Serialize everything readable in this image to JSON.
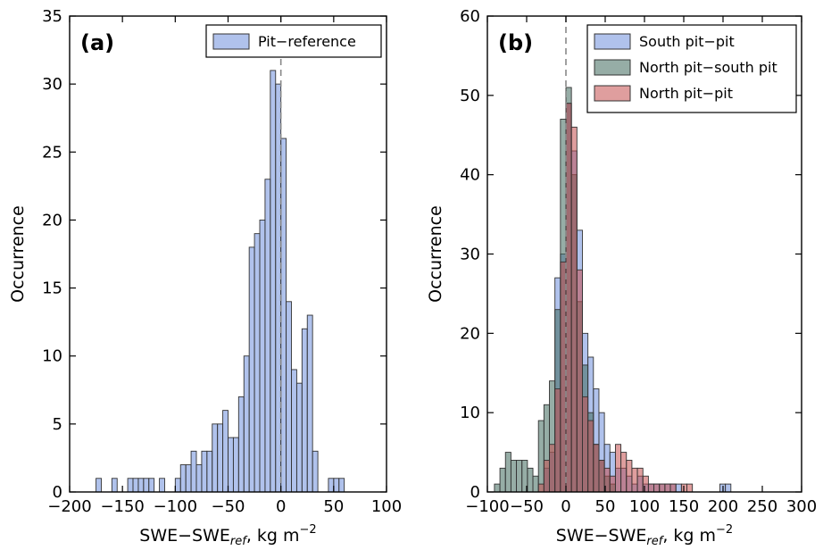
{
  "chart_data": [
    {
      "type": "bar",
      "panel_label": "(a)",
      "xlabel": "SWE−SWE",
      "xlabel_sub": "ref",
      "xlabel_unit": ", kg m",
      "xlabel_sup": "−2",
      "ylabel": "Occurrence",
      "xlim": [
        -200,
        100
      ],
      "ylim": [
        0,
        35
      ],
      "xticks": [
        -200,
        -150,
        -100,
        -50,
        0,
        50,
        100
      ],
      "xtick_labels": [
        "−200",
        "−150",
        "−100",
        "−50",
        "0",
        "50",
        "100"
      ],
      "yticks": [
        0,
        5,
        10,
        15,
        20,
        25,
        30,
        35
      ],
      "ytick_labels": [
        "0",
        "5",
        "10",
        "15",
        "20",
        "25",
        "30",
        "35"
      ],
      "bin_width": 5,
      "reference_line_x": 0,
      "legend_position": "top-right",
      "series": [
        {
          "name": "Pit−reference",
          "color": "#6f8fdc",
          "bins": [
            [
              -175,
              1
            ],
            [
              -160,
              1
            ],
            [
              -145,
              1
            ],
            [
              -140,
              1
            ],
            [
              -135,
              1
            ],
            [
              -130,
              1
            ],
            [
              -125,
              1
            ],
            [
              -115,
              1
            ],
            [
              -100,
              1
            ],
            [
              -95,
              2
            ],
            [
              -90,
              2
            ],
            [
              -85,
              3
            ],
            [
              -80,
              2
            ],
            [
              -75,
              3
            ],
            [
              -70,
              3
            ],
            [
              -65,
              5
            ],
            [
              -60,
              5
            ],
            [
              -55,
              6
            ],
            [
              -50,
              4
            ],
            [
              -45,
              4
            ],
            [
              -40,
              7
            ],
            [
              -35,
              10
            ],
            [
              -30,
              18
            ],
            [
              -25,
              19
            ],
            [
              -20,
              20
            ],
            [
              -15,
              23
            ],
            [
              -10,
              31
            ],
            [
              -5,
              30
            ],
            [
              0,
              26
            ],
            [
              5,
              14
            ],
            [
              10,
              9
            ],
            [
              15,
              8
            ],
            [
              20,
              12
            ],
            [
              25,
              13
            ],
            [
              30,
              3
            ],
            [
              45,
              1
            ],
            [
              50,
              1
            ],
            [
              55,
              1
            ]
          ]
        }
      ]
    },
    {
      "type": "bar",
      "panel_label": "(b)",
      "xlabel": "SWE−SWE",
      "xlabel_sub": "ref",
      "xlabel_unit": ", kg m",
      "xlabel_sup": "−2",
      "ylabel": "Occurrence",
      "xlim": [
        -100,
        300
      ],
      "ylim": [
        0,
        60
      ],
      "xticks": [
        -100,
        -50,
        0,
        50,
        100,
        150,
        200,
        250,
        300
      ],
      "xtick_labels": [
        "−100",
        "−50",
        "0",
        "50",
        "100",
        "150",
        "200",
        "250",
        "300"
      ],
      "yticks": [
        0,
        10,
        20,
        30,
        40,
        50,
        60
      ],
      "ytick_labels": [
        "0",
        "10",
        "20",
        "30",
        "40",
        "50",
        "60"
      ],
      "bin_width": 7,
      "reference_line_x": 0,
      "legend_position": "top-right",
      "series": [
        {
          "name": "South pit−pit",
          "color": "#6f8fdc",
          "bins": [
            [
              -28,
              3
            ],
            [
              -21,
              5
            ],
            [
              -14,
              27
            ],
            [
              -7,
              30
            ],
            [
              0,
              49
            ],
            [
              7,
              43
            ],
            [
              14,
              33
            ],
            [
              21,
              20
            ],
            [
              28,
              17
            ],
            [
              35,
              13
            ],
            [
              42,
              10
            ],
            [
              49,
              6
            ],
            [
              56,
              5
            ],
            [
              63,
              3
            ],
            [
              70,
              3
            ],
            [
              77,
              2
            ],
            [
              84,
              1
            ],
            [
              91,
              2
            ],
            [
              98,
              1
            ],
            [
              105,
              1
            ],
            [
              112,
              1
            ],
            [
              119,
              1
            ],
            [
              126,
              1
            ],
            [
              133,
              1
            ],
            [
              140,
              1
            ],
            [
              196,
              1
            ],
            [
              203,
              1
            ]
          ]
        },
        {
          "name": "North pit−south pit",
          "color": "#3f6a5c",
          "bins": [
            [
              -91,
              1
            ],
            [
              -84,
              3
            ],
            [
              -77,
              5
            ],
            [
              -70,
              4
            ],
            [
              -63,
              4
            ],
            [
              -56,
              4
            ],
            [
              -49,
              3
            ],
            [
              -42,
              2
            ],
            [
              -35,
              9
            ],
            [
              -28,
              11
            ],
            [
              -21,
              14
            ],
            [
              -14,
              23
            ],
            [
              -7,
              47
            ],
            [
              0,
              51
            ],
            [
              7,
              40
            ],
            [
              14,
              24
            ],
            [
              21,
              16
            ],
            [
              28,
              10
            ],
            [
              35,
              6
            ],
            [
              42,
              4
            ],
            [
              49,
              2
            ],
            [
              56,
              1
            ]
          ]
        },
        {
          "name": "North pit−pit",
          "color": "#c44e4e",
          "bins": [
            [
              -35,
              1
            ],
            [
              -28,
              4
            ],
            [
              -21,
              6
            ],
            [
              -14,
              13
            ],
            [
              -7,
              29
            ],
            [
              0,
              49
            ],
            [
              7,
              46
            ],
            [
              14,
              28
            ],
            [
              21,
              12
            ],
            [
              28,
              9
            ],
            [
              35,
              6
            ],
            [
              42,
              4
            ],
            [
              49,
              3
            ],
            [
              56,
              2
            ],
            [
              63,
              6
            ],
            [
              70,
              5
            ],
            [
              77,
              4
            ],
            [
              84,
              3
            ],
            [
              91,
              3
            ],
            [
              98,
              2
            ],
            [
              105,
              1
            ],
            [
              112,
              1
            ],
            [
              119,
              1
            ],
            [
              126,
              1
            ],
            [
              133,
              1
            ],
            [
              147,
              1
            ],
            [
              154,
              1
            ]
          ]
        }
      ]
    }
  ]
}
